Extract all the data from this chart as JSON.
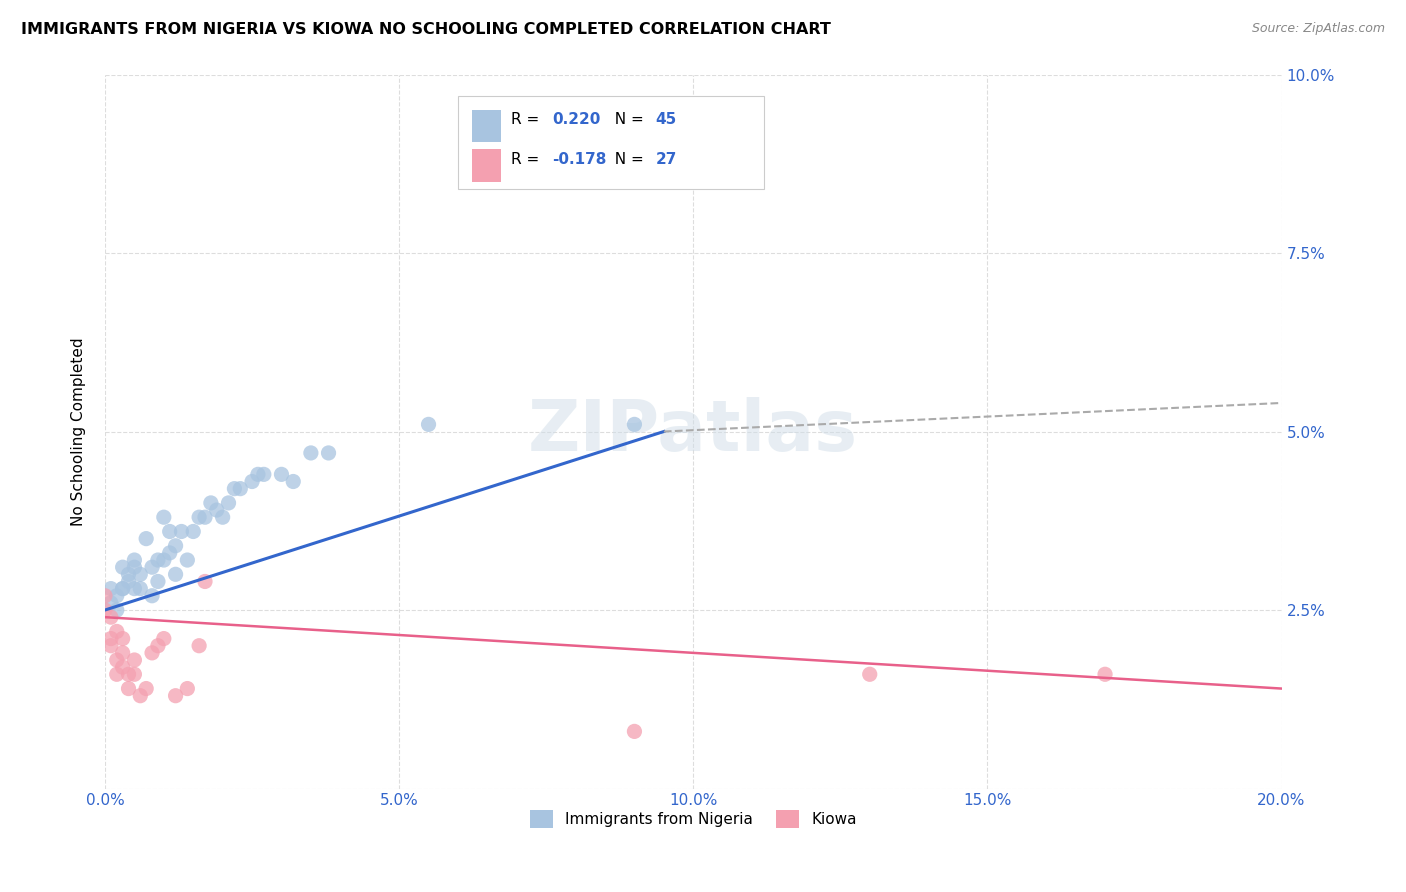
{
  "title": "IMMIGRANTS FROM NIGERIA VS KIOWA NO SCHOOLING COMPLETED CORRELATION CHART",
  "source": "Source: ZipAtlas.com",
  "ylabel": "No Schooling Completed",
  "xlim": [
    0.0,
    0.2
  ],
  "ylim": [
    0.0,
    0.1
  ],
  "background_color": "#ffffff",
  "grid_color": "#dddddd",
  "legend_label_blue": "Immigrants from Nigeria",
  "legend_label_pink": "Kiowa",
  "r_blue": "0.220",
  "n_blue": "45",
  "r_pink": "-0.178",
  "n_pink": "27",
  "dot_color_blue": "#a8c4e0",
  "dot_color_pink": "#f4a0b0",
  "line_color_blue": "#3366cc",
  "line_color_pink": "#e8608a",
  "line_color_dashed": "#aaaaaa",
  "nigeria_x": [
    0.001,
    0.001,
    0.002,
    0.002,
    0.003,
    0.003,
    0.003,
    0.004,
    0.004,
    0.005,
    0.005,
    0.005,
    0.006,
    0.006,
    0.007,
    0.008,
    0.008,
    0.009,
    0.009,
    0.01,
    0.01,
    0.011,
    0.011,
    0.012,
    0.012,
    0.013,
    0.014,
    0.015,
    0.016,
    0.017,
    0.018,
    0.019,
    0.02,
    0.021,
    0.022,
    0.023,
    0.025,
    0.026,
    0.027,
    0.03,
    0.032,
    0.035,
    0.038,
    0.055,
    0.09
  ],
  "nigeria_y": [
    0.028,
    0.026,
    0.027,
    0.025,
    0.028,
    0.028,
    0.031,
    0.029,
    0.03,
    0.028,
    0.031,
    0.032,
    0.028,
    0.03,
    0.035,
    0.027,
    0.031,
    0.032,
    0.029,
    0.032,
    0.038,
    0.033,
    0.036,
    0.03,
    0.034,
    0.036,
    0.032,
    0.036,
    0.038,
    0.038,
    0.04,
    0.039,
    0.038,
    0.04,
    0.042,
    0.042,
    0.043,
    0.044,
    0.044,
    0.044,
    0.043,
    0.047,
    0.047,
    0.051,
    0.051
  ],
  "kiowa_x": [
    0.0,
    0.0,
    0.001,
    0.001,
    0.001,
    0.002,
    0.002,
    0.002,
    0.003,
    0.003,
    0.003,
    0.004,
    0.004,
    0.005,
    0.005,
    0.006,
    0.007,
    0.008,
    0.009,
    0.01,
    0.012,
    0.014,
    0.016,
    0.017,
    0.09,
    0.13,
    0.17
  ],
  "kiowa_y": [
    0.027,
    0.025,
    0.024,
    0.021,
    0.02,
    0.022,
    0.018,
    0.016,
    0.019,
    0.017,
    0.021,
    0.016,
    0.014,
    0.018,
    0.016,
    0.013,
    0.014,
    0.019,
    0.02,
    0.021,
    0.013,
    0.014,
    0.02,
    0.029,
    0.008,
    0.016,
    0.016
  ],
  "blue_line_x0": 0.0,
  "blue_line_y0": 0.025,
  "blue_line_x1": 0.095,
  "blue_line_y1": 0.05,
  "dash_line_x0": 0.095,
  "dash_line_y0": 0.05,
  "dash_line_x1": 0.2,
  "dash_line_y1": 0.054,
  "pink_line_x0": 0.0,
  "pink_line_y0": 0.024,
  "pink_line_x1": 0.2,
  "pink_line_y1": 0.014
}
